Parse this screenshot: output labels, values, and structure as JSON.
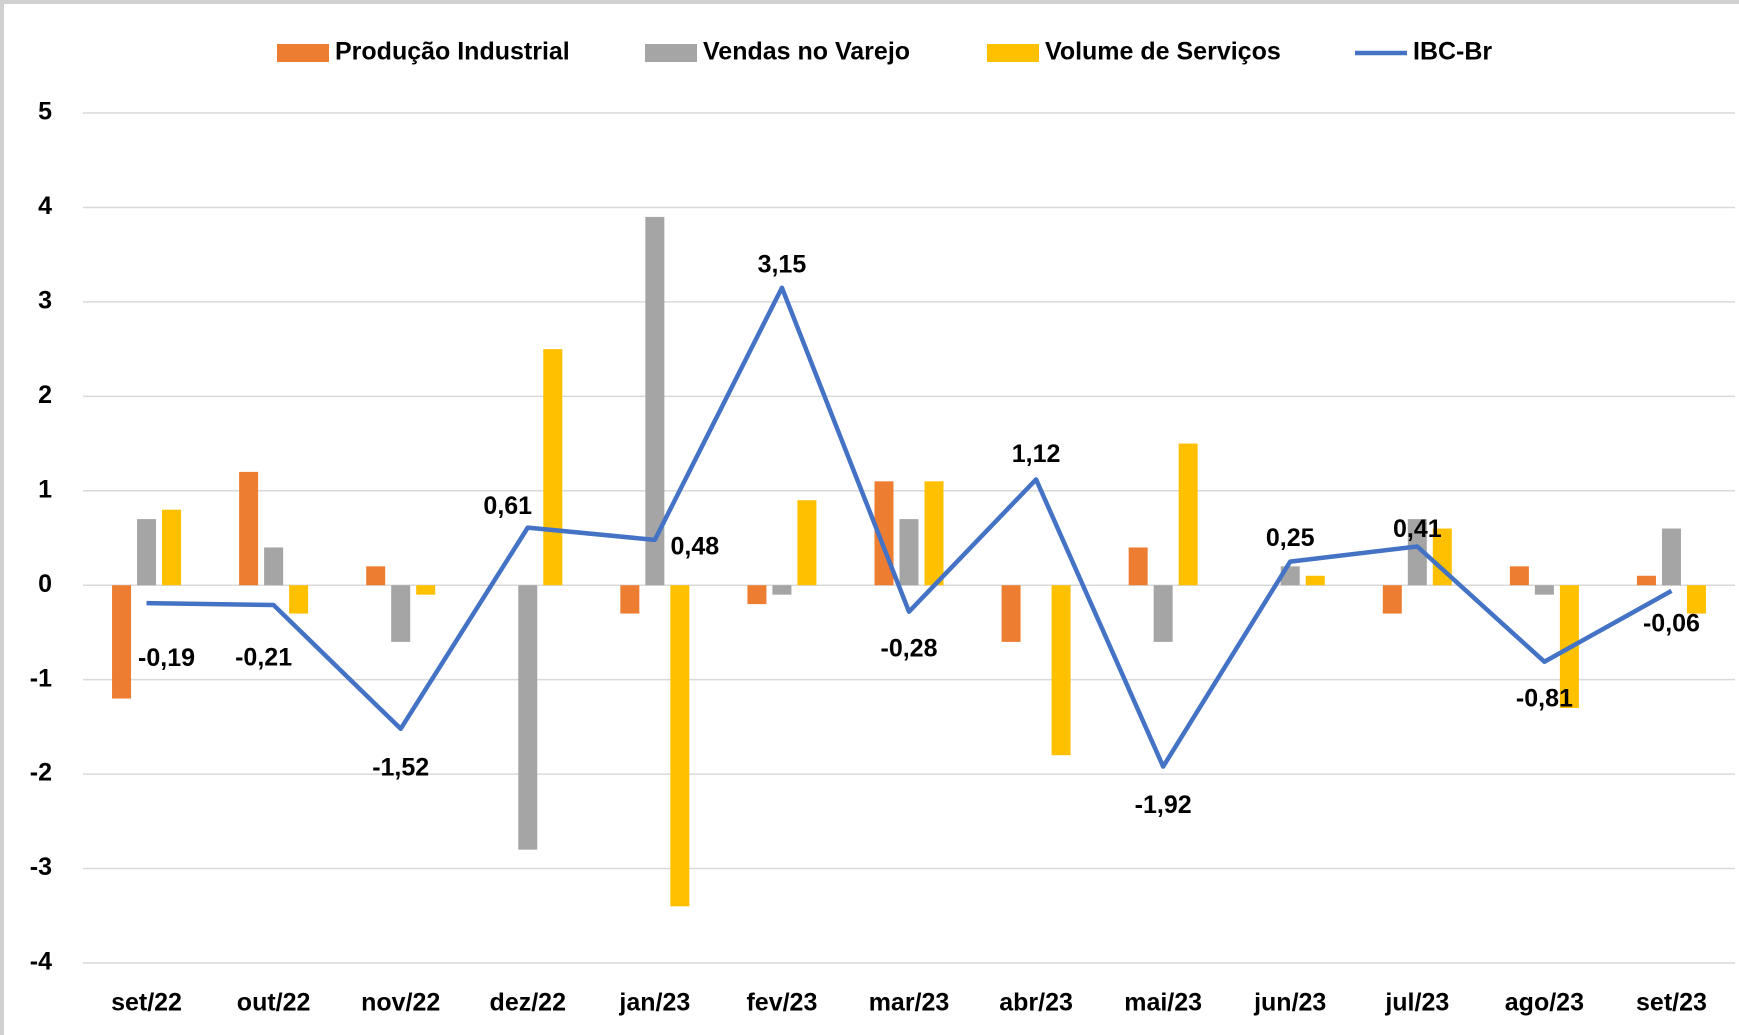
{
  "chart_data": {
    "type": "bar_line",
    "categories": [
      "set/22",
      "out/22",
      "nov/22",
      "dez/22",
      "jan/23",
      "fev/23",
      "mar/23",
      "abr/23",
      "mai/23",
      "jun/23",
      "jul/23",
      "ago/23",
      "set/23"
    ],
    "series": [
      {
        "name": "Produção Industrial",
        "color": "#ed7d31",
        "type": "bar",
        "values": [
          -1.2,
          1.2,
          0.2,
          0,
          -0.3,
          -0.2,
          1.1,
          -0.6,
          0.4,
          0,
          -0.3,
          0.2,
          0.1
        ]
      },
      {
        "name": "Vendas no Varejo",
        "color": "#a5a5a5",
        "type": "bar",
        "values": [
          0.7,
          0.4,
          -0.6,
          -2.8,
          3.9,
          -0.1,
          0.7,
          0,
          -0.6,
          0.2,
          0.7,
          -0.1,
          0.6
        ]
      },
      {
        "name": "Volume de Serviços",
        "color": "#ffc000",
        "type": "bar",
        "values": [
          0.8,
          -0.3,
          -0.1,
          2.5,
          -3.4,
          0.9,
          1.1,
          -1.8,
          1.5,
          0.1,
          0.6,
          -1.3,
          -0.3
        ]
      },
      {
        "name": "IBC-Br",
        "color": "#4472c4",
        "type": "line",
        "values": [
          -0.19,
          -0.21,
          -1.52,
          0.61,
          0.48,
          3.15,
          -0.28,
          1.12,
          -1.92,
          0.25,
          0.41,
          -0.81,
          -0.06
        ],
        "value_labels": [
          "-0,19",
          "-0,21",
          "-1,52",
          "0,61",
          "0,48",
          "3,15",
          "-0,28",
          "1,12",
          "-1,92",
          "0,25",
          "0,41",
          "-0,81",
          "-0,06"
        ]
      }
    ],
    "ylim": [
      -4,
      5
    ],
    "yticks": [
      -4,
      -3,
      -2,
      -1,
      0,
      1,
      2,
      3,
      4,
      5
    ],
    "grid": true
  }
}
